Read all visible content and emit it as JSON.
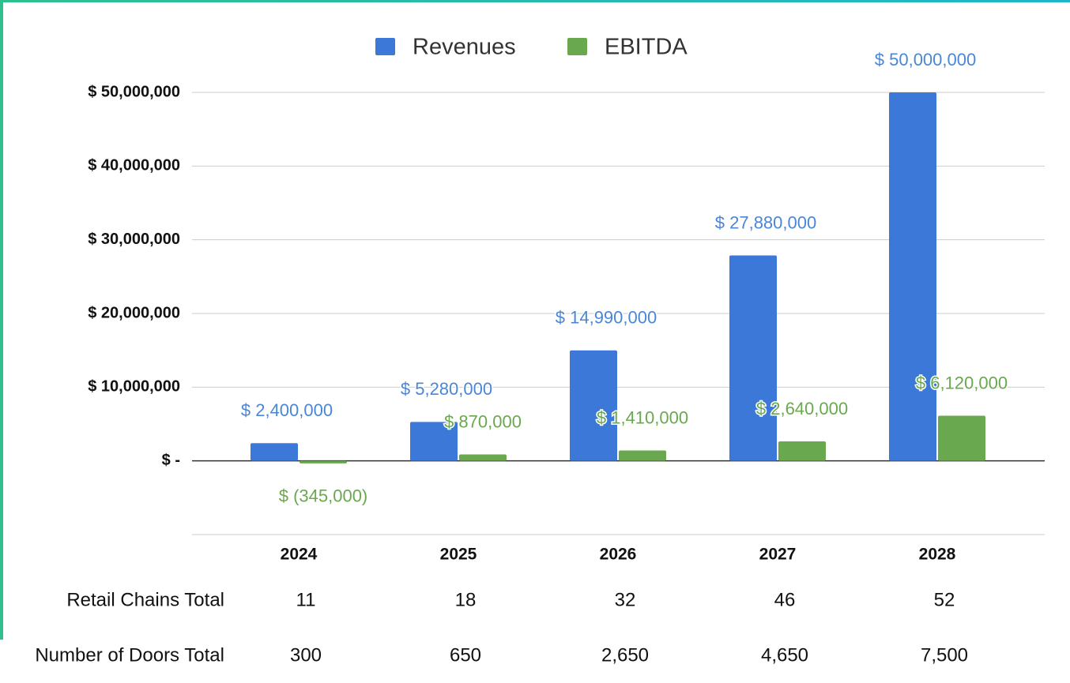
{
  "chart_data": {
    "type": "bar",
    "categories": [
      "2024",
      "2025",
      "2026",
      "2027",
      "2028"
    ],
    "series": [
      {
        "name": "Revenues",
        "color": "#3c78d8",
        "label_color": "#4a86d8",
        "values": [
          2400000,
          5280000,
          14990000,
          27880000,
          50000000
        ],
        "value_labels": [
          "$ 2,400,000",
          "$ 5,280,000",
          "$ 14,990,000",
          "$ 27,880,000",
          "$ 50,000,000"
        ]
      },
      {
        "name": "EBITDA",
        "color": "#6aa84f",
        "label_color": "#6aa84f",
        "values": [
          -345000,
          870000,
          1410000,
          2640000,
          6120000
        ],
        "value_labels": [
          "$ (345,000)",
          "$ 870,000",
          "$ 1,410,000",
          "$ 2,640,000",
          "$ 6,120,000"
        ]
      }
    ],
    "ylim": [
      -10000000,
      50000000
    ],
    "yticks": [
      {
        "value": 0,
        "label": "$ -"
      },
      {
        "value": 10000000,
        "label": "$ 10,000,000"
      },
      {
        "value": 20000000,
        "label": "$ 20,000,000"
      },
      {
        "value": 30000000,
        "label": "$ 30,000,000"
      },
      {
        "value": 40000000,
        "label": "$ 40,000,000"
      },
      {
        "value": 50000000,
        "label": "$ 50,000,000"
      }
    ],
    "grid": true,
    "legend": "top"
  },
  "table": {
    "rows": [
      {
        "label": "Retail Chains Total",
        "values": [
          "11",
          "18",
          "32",
          "46",
          "52"
        ]
      },
      {
        "label": "Number of Doors Total",
        "values": [
          "300",
          "650",
          "2,650",
          "4,650",
          "7,500"
        ]
      }
    ]
  }
}
